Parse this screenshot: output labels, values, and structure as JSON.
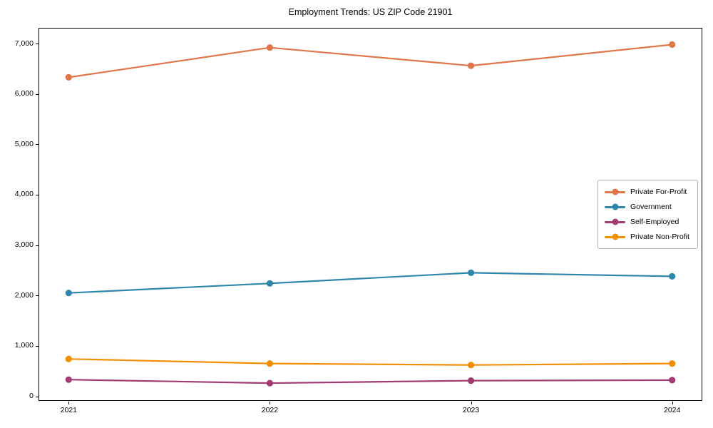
{
  "chart_data": {
    "type": "line",
    "title": "Employment Trends: US ZIP Code 21901",
    "xlabel": "",
    "ylabel": "",
    "categories": [
      "2021",
      "2022",
      "2023",
      "2024"
    ],
    "series": [
      {
        "name": "Private For-Profit",
        "color": "#E0764A",
        "values": [
          6330,
          6920,
          6560,
          6980
        ]
      },
      {
        "name": "Government",
        "color": "#2E86AB",
        "values": [
          2050,
          2240,
          2450,
          2380
        ]
      },
      {
        "name": "Self-Employed",
        "color": "#A23B72",
        "values": [
          330,
          260,
          310,
          320
        ]
      },
      {
        "name": "Private Non-Profit",
        "color": "#F18F01",
        "values": [
          740,
          650,
          620,
          650
        ]
      }
    ],
    "yticks": [
      0,
      1000,
      2000,
      3000,
      4000,
      5000,
      6000,
      7000
    ],
    "ytick_labels": [
      "0",
      "1,000",
      "2,000",
      "3,000",
      "4,000",
      "5,000",
      "6,000",
      "7,000"
    ],
    "ylim": [
      -92,
      7312
    ],
    "xlim": [
      -0.15,
      3.15
    ],
    "grid": false,
    "legend_position": "center right",
    "marker": "circle",
    "line_width": 2.2,
    "marker_radius": 4.6
  }
}
